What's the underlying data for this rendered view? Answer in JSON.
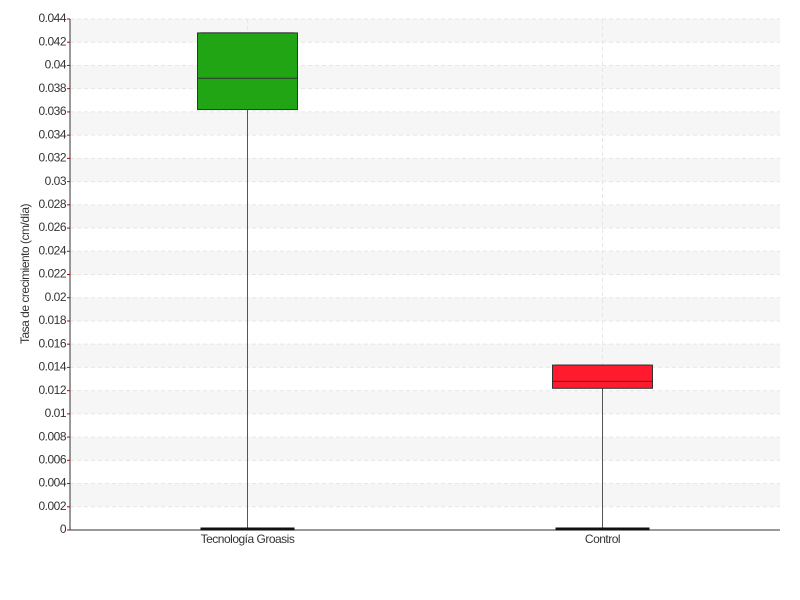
{
  "chart_data": {
    "type": "box",
    "y_label": "Tasa de crecimiento (cm/día)",
    "categories": [
      "Tecnología Groasis",
      "Control"
    ],
    "boxes": [
      {
        "color": "#22a514",
        "min": 0,
        "q1": 0.0362,
        "median": 0.0389,
        "q3": 0.0428,
        "max": 0.0428
      },
      {
        "color": "#ff1a2e",
        "min": 0,
        "q1": 0.0122,
        "median": 0.0128,
        "q3": 0.0142,
        "max": 0.0142
      }
    ],
    "ylim": [
      0,
      0.044
    ],
    "yticks": [
      0,
      0.002,
      0.004,
      0.006,
      0.008,
      0.01,
      0.012,
      0.014,
      0.016,
      0.018,
      0.02,
      0.022,
      0.024,
      0.026,
      0.028,
      0.03,
      0.032,
      0.034,
      0.036,
      0.038,
      0.04,
      0.042,
      0.044
    ],
    "grid": true
  }
}
